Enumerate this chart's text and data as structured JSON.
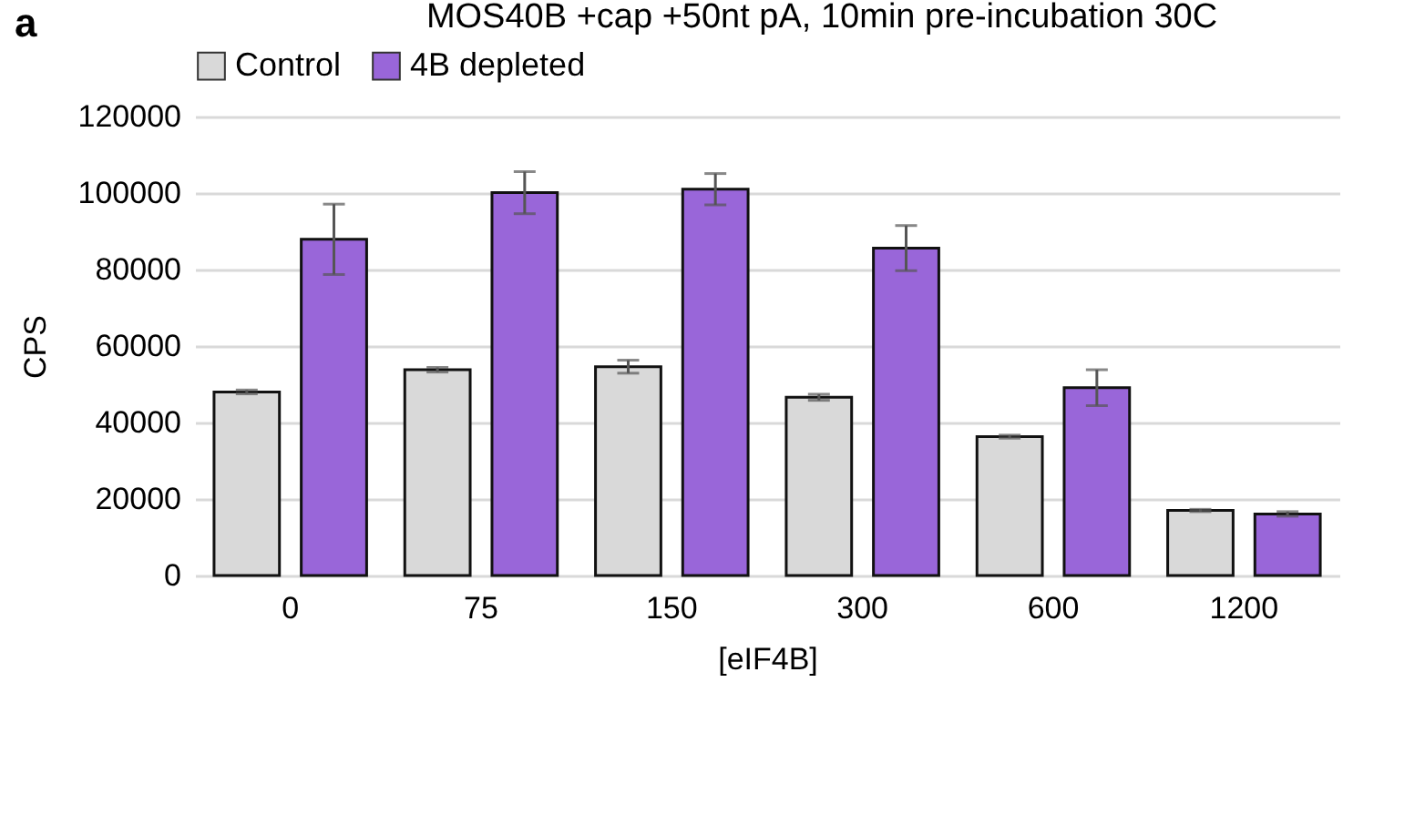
{
  "chart_data": {
    "type": "bar",
    "title": "MOS40B +cap +50nt pA, 10min pre-incubation 30C",
    "xlabel": "[eIF4B]",
    "ylabel": "CPS",
    "annotations": [
      "a"
    ],
    "categories": [
      "0",
      "75",
      "150",
      "300",
      "600",
      "1200"
    ],
    "series": [
      {
        "name": "Control",
        "color": "#d9d9d9",
        "values": [
          48000,
          53800,
          54600,
          46600,
          36300,
          17000
        ],
        "errors": [
          500,
          600,
          1700,
          800,
          400,
          300
        ]
      },
      {
        "name": "4B depleted",
        "color": "#9966d9",
        "values": [
          87900,
          100100,
          101000,
          85600,
          49100,
          16100
        ],
        "errors": [
          9200,
          5500,
          4100,
          5900,
          4700,
          600
        ]
      }
    ],
    "ylim": [
      0,
      120000
    ],
    "yticks": [
      0,
      20000,
      40000,
      60000,
      80000,
      100000,
      120000
    ],
    "grid": "y",
    "legend": "top"
  }
}
